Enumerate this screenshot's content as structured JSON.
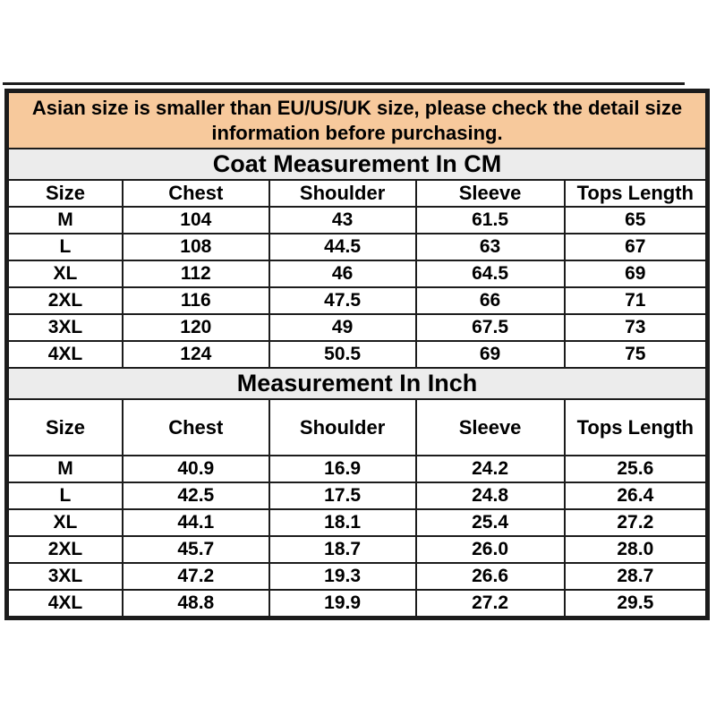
{
  "notice": {
    "text": "Asian size is smaller than EU/US/UK size, please check the detail size information before purchasing."
  },
  "chart_data": [
    {
      "type": "table",
      "title": "Coat Measurement In CM",
      "columns": [
        "Size",
        "Chest",
        "Shoulder",
        "Sleeve",
        "Tops Length"
      ],
      "rows": [
        [
          "M",
          "104",
          "43",
          "61.5",
          "65"
        ],
        [
          "L",
          "108",
          "44.5",
          "63",
          "67"
        ],
        [
          "XL",
          "112",
          "46",
          "64.5",
          "69"
        ],
        [
          "2XL",
          "116",
          "47.5",
          "66",
          "71"
        ],
        [
          "3XL",
          "120",
          "49",
          "67.5",
          "73"
        ],
        [
          "4XL",
          "124",
          "50.5",
          "69",
          "75"
        ]
      ]
    },
    {
      "type": "table",
      "title": "Measurement In Inch",
      "columns": [
        "Size",
        "Chest",
        "Shoulder",
        "Sleeve",
        "Tops Length"
      ],
      "rows": [
        [
          "M",
          "40.9",
          "16.9",
          "24.2",
          "25.6"
        ],
        [
          "L",
          "42.5",
          "17.5",
          "24.8",
          "26.4"
        ],
        [
          "XL",
          "44.1",
          "18.1",
          "25.4",
          "27.2"
        ],
        [
          "2XL",
          "45.7",
          "18.7",
          "26.0",
          "28.0"
        ],
        [
          "3XL",
          "47.2",
          "19.3",
          "26.6",
          "28.7"
        ],
        [
          "4XL",
          "48.8",
          "19.9",
          "27.2",
          "29.5"
        ]
      ]
    }
  ],
  "colors": {
    "notice_bg": "#F7C99C",
    "section_header_bg": "#ECECEC",
    "border": "#1C1C1C",
    "text": "#000000",
    "cell_bg": "#FFFFFF"
  }
}
